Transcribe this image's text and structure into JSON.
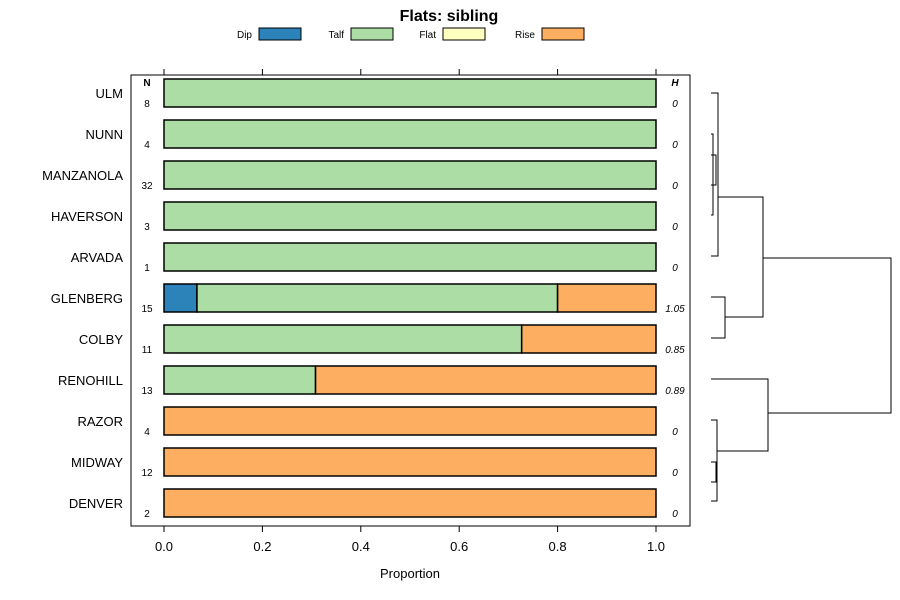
{
  "chart_data": {
    "type": "bar",
    "stacked": true,
    "orientation": "horizontal",
    "title": "Flats: sibling",
    "xlabel": "Proportion",
    "xlim": [
      0,
      1
    ],
    "xticks": [
      "0.0",
      "0.2",
      "0.4",
      "0.6",
      "0.8",
      "1.0"
    ],
    "n_header": "N",
    "h_header": "H",
    "legend_position": "top",
    "series": [
      {
        "name": "Dip",
        "color": "#2b83ba"
      },
      {
        "name": "Talf",
        "color": "#abdda4"
      },
      {
        "name": "Flat",
        "color": "#ffffbf"
      },
      {
        "name": "Rise",
        "color": "#fdae61"
      }
    ],
    "categories": [
      "ULM",
      "NUNN",
      "MANZANOLA",
      "HAVERSON",
      "ARVADA",
      "GLENBERG",
      "COLBY",
      "RENOHILL",
      "RAZOR",
      "MIDWAY",
      "DENVER"
    ],
    "n": [
      "8",
      "4",
      "32",
      "3",
      "1",
      "15",
      "11",
      "13",
      "4",
      "12",
      "2"
    ],
    "h": [
      "0",
      "0",
      "0",
      "0",
      "0",
      "1.05",
      "0.85",
      "0.89",
      "0",
      "0",
      "0"
    ],
    "values": [
      [
        0,
        1,
        0,
        0
      ],
      [
        0,
        1,
        0,
        0
      ],
      [
        0,
        1,
        0,
        0
      ],
      [
        0,
        1,
        0,
        0
      ],
      [
        0,
        1,
        0,
        0
      ],
      [
        0.067,
        0.733,
        0,
        0.2
      ],
      [
        0,
        0.727,
        0,
        0.273
      ],
      [
        0,
        0.308,
        0,
        0.692
      ],
      [
        0,
        0,
        0,
        1
      ],
      [
        0,
        0,
        0,
        1
      ],
      [
        0,
        0,
        0,
        1
      ]
    ],
    "dendrogram": true
  }
}
